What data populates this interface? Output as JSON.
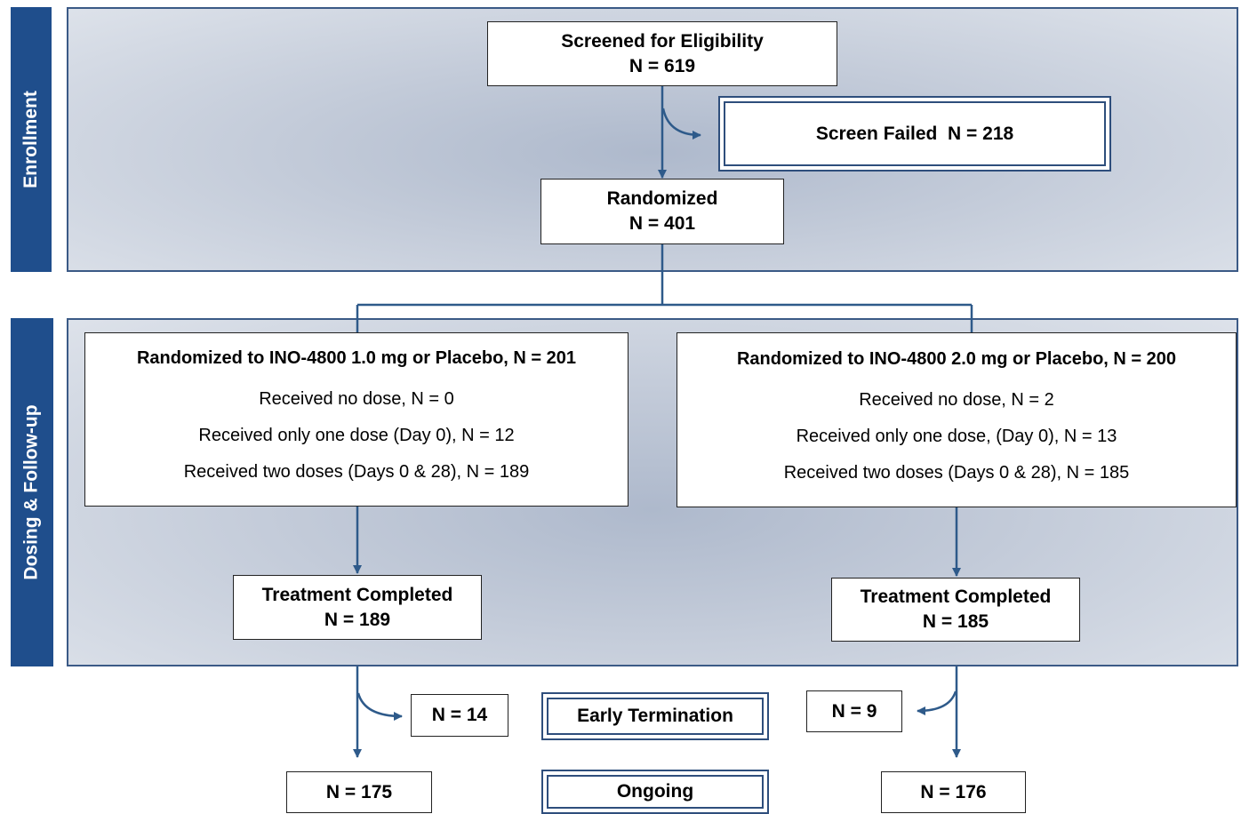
{
  "sections": {
    "enrollment": "Enrollment",
    "dosing": "Dosing & Follow-up"
  },
  "screened": {
    "title": "Screened for Eligibility",
    "n": "N = 619"
  },
  "screen_failed": "Screen Failed  N = 218",
  "randomized": {
    "title": "Randomized",
    "n": "N = 401"
  },
  "arms": [
    {
      "title": "Randomized to INO-4800 1.0 mg or Placebo, N = 201",
      "lines": [
        "Received no dose, N = 0",
        "Received only one dose (Day 0), N = 12",
        "Received two doses (Days 0 & 28), N = 189"
      ],
      "completed_title": "Treatment Completed",
      "completed_n": "N = 189",
      "early_termination_n": "N = 14",
      "ongoing_n": "N = 175"
    },
    {
      "title": "Randomized to INO-4800 2.0 mg or Placebo, N = 200",
      "lines": [
        "Received no dose, N = 2",
        "Received only one dose, (Day 0), N = 13",
        "Received two doses (Days 0 & 28), N = 185"
      ],
      "completed_title": "Treatment Completed",
      "completed_n": "N = 185",
      "early_termination_n": "N = 9",
      "ongoing_n": "N = 176"
    }
  ],
  "legend": {
    "early_termination": "Early Termination",
    "ongoing": "Ongoing"
  },
  "colors": {
    "side_label": "#1f4e8c",
    "panel_border": "#3b5a86",
    "arrow": "#2e5a8a"
  }
}
